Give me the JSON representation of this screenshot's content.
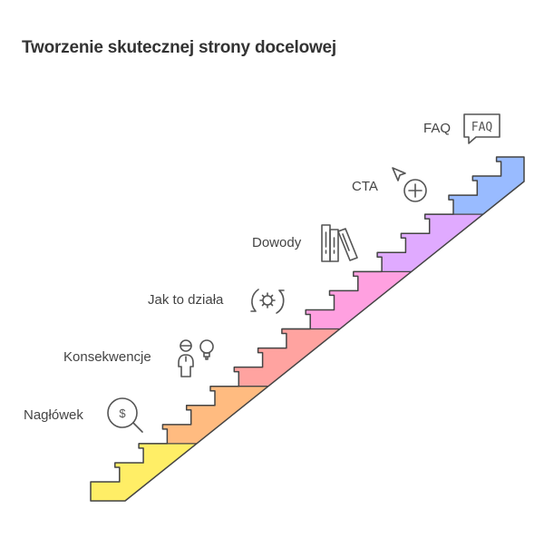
{
  "title": "Tworzenie skutecznej strony docelowej",
  "steps": [
    {
      "label": "Nagłówek",
      "color": "#FFEE66",
      "icon": "dollar-search-icon"
    },
    {
      "label": "Konsekwencje",
      "color": "#FFBB80",
      "icon": "person-idea-icon"
    },
    {
      "label": "Jak to działa",
      "color": "#FFA3A0",
      "icon": "gear-cycle-icon"
    },
    {
      "label": "Dowody",
      "color": "#FFA0E0",
      "icon": "books-icon"
    },
    {
      "label": "CTA",
      "color": "#E0AAFF",
      "icon": "cursor-plus-icon"
    },
    {
      "label": "FAQ",
      "color": "#99BBFF",
      "icon": "faq-bubble-icon"
    }
  ],
  "faq_icon_text": "FAQ",
  "outline_color": "#444444"
}
